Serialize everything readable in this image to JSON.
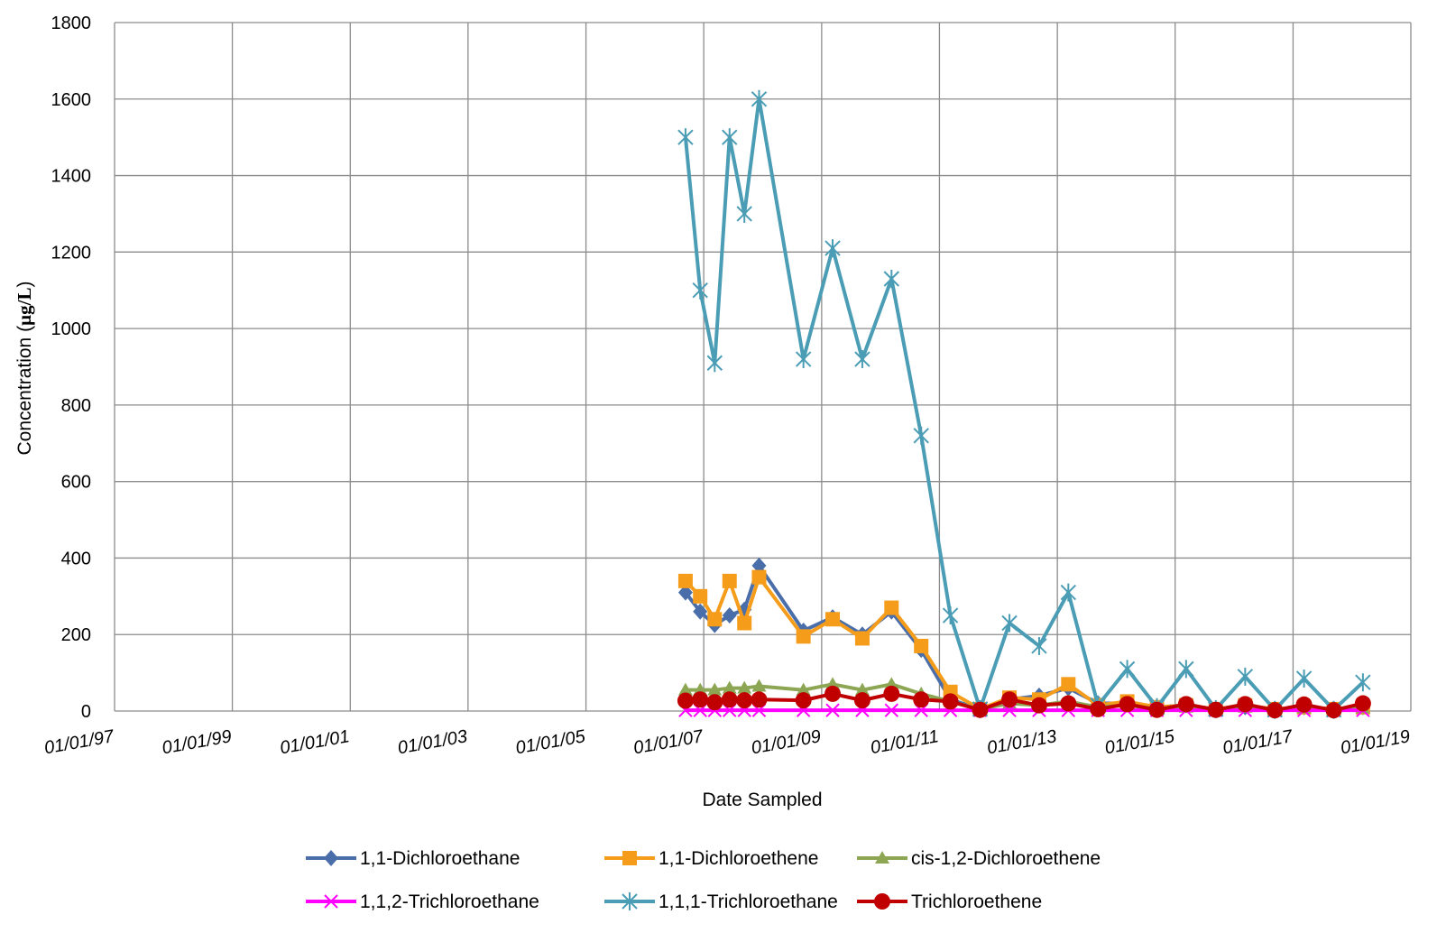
{
  "chart_data": {
    "type": "line",
    "title": "",
    "xlabel": "Date Sampled",
    "ylabel_prefix": "Concentration (",
    "ylabel_unit": "µg/L",
    "ylabel_suffix": ")",
    "xlim": [
      "1997-01-01",
      "2019-01-01"
    ],
    "ylim": [
      0,
      1800
    ],
    "grid": true,
    "legend_position": "bottom",
    "y_ticks": [
      0,
      200,
      400,
      600,
      800,
      1000,
      1200,
      1400,
      1600,
      1800
    ],
    "y_tick_labels": [
      "0",
      "200",
      "400",
      "600",
      "800",
      "1000",
      "1200",
      "1400",
      "1600",
      "1800"
    ],
    "x_ticks": [
      "1997-01-01",
      "1999-01-01",
      "2001-01-01",
      "2003-01-01",
      "2005-01-01",
      "2007-01-01",
      "2009-01-01",
      "2011-01-01",
      "2013-01-01",
      "2015-01-01",
      "2017-01-01",
      "2019-01-01"
    ],
    "x_tick_labels": [
      "01/01/97",
      "01/01/99",
      "01/01/01",
      "01/01/03",
      "01/01/05",
      "01/01/07",
      "01/01/09",
      "01/01/11",
      "01/01/13",
      "01/01/15",
      "01/01/17",
      "01/01/19"
    ],
    "dates": [
      "2006-09-10",
      "2006-12-10",
      "2007-03-10",
      "2007-06-10",
      "2007-09-10",
      "2007-12-10",
      "2008-09-10",
      "2009-03-10",
      "2009-09-10",
      "2010-03-10",
      "2010-09-10",
      "2011-03-10",
      "2011-09-10",
      "2012-03-10",
      "2012-09-10",
      "2013-03-10",
      "2013-09-10",
      "2014-03-10",
      "2014-09-10",
      "2015-03-10",
      "2015-09-10",
      "2016-03-10",
      "2016-09-10",
      "2017-03-10",
      "2017-09-10",
      "2018-03-10"
    ],
    "series": [
      {
        "name": "1,1-Dichloroethane",
        "color": "#4A6EA9",
        "marker": "diamond",
        "values": [
          310,
          260,
          225,
          250,
          265,
          380,
          210,
          245,
          200,
          260,
          160,
          30,
          5,
          30,
          40,
          60,
          20,
          20,
          10,
          15,
          5,
          10,
          5,
          10,
          5,
          10
        ]
      },
      {
        "name": "1,1-Dichloroethene",
        "color": "#F59C1A",
        "marker": "square",
        "values": [
          340,
          300,
          240,
          340,
          230,
          350,
          195,
          240,
          190,
          270,
          170,
          50,
          5,
          35,
          30,
          70,
          15,
          25,
          10,
          15,
          5,
          15,
          5,
          10,
          5,
          10
        ]
      },
      {
        "name": "cis-1,2-Dichloroethene",
        "color": "#8CA654",
        "marker": "triangle",
        "values": [
          55,
          55,
          55,
          60,
          60,
          65,
          55,
          70,
          55,
          70,
          45,
          25,
          5,
          20,
          15,
          25,
          10,
          15,
          5,
          10,
          5,
          10,
          3,
          8,
          3,
          8
        ]
      },
      {
        "name": "1,1,2-Trichloroethane",
        "color": "#FF00FF",
        "marker": "x",
        "values": [
          2,
          2,
          2,
          2,
          2,
          2,
          2,
          2,
          2,
          2,
          2,
          2,
          2,
          2,
          2,
          2,
          2,
          2,
          2,
          2,
          2,
          2,
          2,
          2,
          2,
          2
        ]
      },
      {
        "name": "1,1,1-Trichloroethane",
        "color": "#4A9DB5",
        "marker": "star",
        "values": [
          1500,
          1100,
          910,
          1500,
          1300,
          1600,
          920,
          1210,
          920,
          1130,
          720,
          250,
          5,
          230,
          170,
          310,
          15,
          110,
          10,
          110,
          5,
          90,
          3,
          85,
          3,
          75
        ]
      },
      {
        "name": "Trichloroethene",
        "color": "#C00000",
        "marker": "circle",
        "values": [
          27,
          30,
          23,
          30,
          28,
          30,
          28,
          45,
          28,
          45,
          30,
          25,
          3,
          30,
          15,
          20,
          5,
          18,
          3,
          18,
          3,
          18,
          2,
          17,
          2,
          20
        ]
      }
    ]
  }
}
